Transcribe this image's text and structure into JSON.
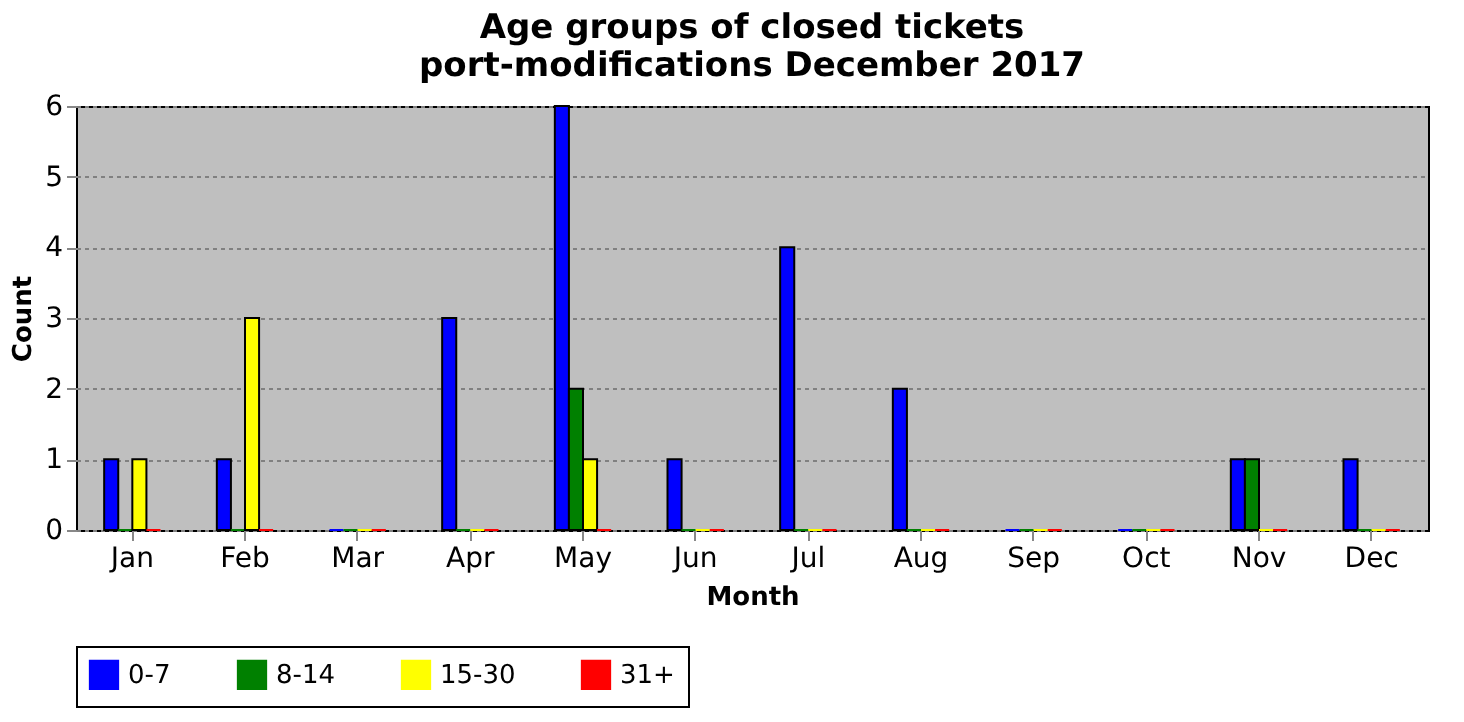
{
  "chart_data": {
    "type": "bar",
    "title": [
      "Age groups of closed tickets",
      "port-modifications December 2017"
    ],
    "xlabel": "Month",
    "ylabel": "Count",
    "categories": [
      "Jan",
      "Feb",
      "Mar",
      "Apr",
      "May",
      "Jun",
      "Jul",
      "Aug",
      "Sep",
      "Oct",
      "Nov",
      "Dec"
    ],
    "series": [
      {
        "name": "0-7",
        "color": "#0000ff",
        "values": [
          1,
          1,
          0,
          3,
          6,
          1,
          4,
          2,
          0,
          0,
          1,
          1
        ]
      },
      {
        "name": "8-14",
        "color": "#008000",
        "values": [
          0,
          0,
          0,
          0,
          2,
          0,
          0,
          0,
          0,
          0,
          1,
          0
        ]
      },
      {
        "name": "15-30",
        "color": "#ffff00",
        "values": [
          1,
          3,
          0,
          0,
          1,
          0,
          0,
          0,
          0,
          0,
          0,
          0
        ]
      },
      {
        "name": "31+",
        "color": "#ff0000",
        "values": [
          0,
          0,
          0,
          0,
          0,
          0,
          0,
          0,
          0,
          0,
          0,
          0
        ]
      }
    ],
    "ylim": [
      0,
      6
    ],
    "yticks": [
      0,
      1,
      2,
      3,
      4,
      5,
      6
    ],
    "grid": "y",
    "legend": "bottom"
  }
}
